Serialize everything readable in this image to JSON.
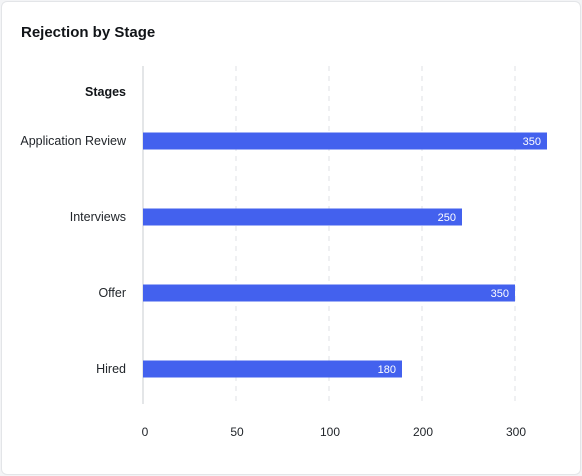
{
  "chart_data": {
    "type": "bar",
    "orientation": "horizontal",
    "title": "Rejection by Stage",
    "category_header": "Stages",
    "categories": [
      "Application Review",
      "Interviews",
      "Offer",
      "Hired"
    ],
    "values": [
      350,
      250,
      350,
      180
    ],
    "data_labels": [
      "350",
      "250",
      "350",
      "180"
    ],
    "x_ticks": [
      0,
      50,
      100,
      200,
      300
    ],
    "xlim": [
      0,
      300
    ],
    "grid": "vertical dashed",
    "legend": "none",
    "bar_color": "#4361ee",
    "grid_color": "#dfe2e6",
    "axis_color": "#c9ccd1"
  }
}
